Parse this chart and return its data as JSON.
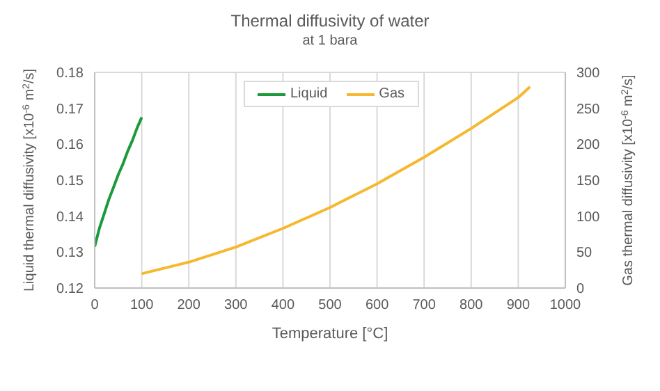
{
  "chart_data": {
    "type": "line",
    "title": "Thermal diffusivity of water",
    "subtitle": "at 1 bara",
    "xlabel": "Temperature  [°C]",
    "ylabel": "Liquid thermal diffusivity  [x10$^{-6}$ m$^{2}$/s]",
    "y2label": "Gas thermal diffusivity  [x10$^{-6}$ m$^{2}$/s]",
    "xlim": [
      0,
      1000
    ],
    "xticks": [
      0,
      100,
      200,
      300,
      400,
      500,
      600,
      700,
      800,
      900,
      1000
    ],
    "ylim": [
      0.12,
      0.18
    ],
    "yticks": [
      0.12,
      0.13,
      0.14,
      0.15,
      0.16,
      0.17,
      0.18
    ],
    "y2lim": [
      0,
      300
    ],
    "y2ticks": [
      0,
      50,
      100,
      150,
      200,
      250,
      300
    ],
    "grid": true,
    "legend": "top",
    "marker": "none",
    "line_style": "solid",
    "series": [
      {
        "name": "Liquid",
        "color": "#1a9a3a",
        "x": [
          0,
          10,
          20,
          30,
          40,
          50,
          60,
          70,
          80,
          90,
          100
        ],
        "values": [
          0.1315,
          0.1366,
          0.1406,
          0.1446,
          0.148,
          0.1515,
          0.1545,
          0.158,
          0.161,
          0.1645,
          0.1675
        ]
      },
      {
        "name": "Gas",
        "color": "#f5b82e",
        "axis": "y2",
        "x": [
          100,
          200,
          300,
          400,
          500,
          600,
          700,
          800,
          900,
          925
        ],
        "values": [
          20,
          36,
          57,
          83,
          112,
          145,
          182,
          222,
          265,
          280
        ]
      }
    ]
  }
}
